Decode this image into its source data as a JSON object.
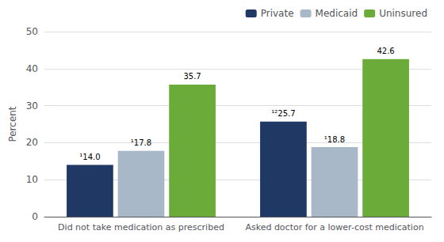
{
  "chart_data": {
    "type": "bar",
    "categories": [
      "Did not take medication as prescribed",
      "Asked doctor for a lower-cost medication"
    ],
    "series": [
      {
        "name": "Private",
        "color": "#1f3864",
        "values": [
          14.0,
          25.7
        ],
        "value_labels": [
          "¹14.0",
          "¹²25.7"
        ]
      },
      {
        "name": "Medicaid",
        "color": "#a8b8c8",
        "values": [
          17.8,
          18.8
        ],
        "value_labels": [
          "¹17.8",
          "¹18.8"
        ]
      },
      {
        "name": "Uninsured",
        "color": "#6aab3a",
        "values": [
          35.7,
          42.6
        ]
      }
    ],
    "ylabel": "Percent",
    "ylim": [
      0,
      50
    ],
    "yticks": [
      0,
      10,
      20,
      30,
      40,
      50
    ],
    "grid": true,
    "legend": "upper right",
    "data_labels": true
  }
}
